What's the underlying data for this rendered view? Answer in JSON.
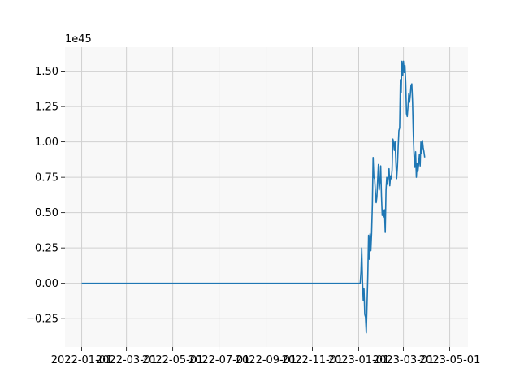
{
  "chart_data": {
    "type": "line",
    "title": "",
    "xlabel": "",
    "ylabel": "",
    "y_offset_label": "1e45",
    "x_tick_labels": [
      "2022-01-01",
      "2022-03-01",
      "2022-05-01",
      "2022-07-01",
      "2022-09-01",
      "2022-11-01",
      "2023-01-01",
      "2023-03-01",
      "2023-05-01"
    ],
    "x_tick_dates": [
      "2022-01-01",
      "2022-03-01",
      "2022-05-01",
      "2022-07-01",
      "2022-09-01",
      "2022-11-01",
      "2023-01-01",
      "2023-03-01",
      "2023-05-01"
    ],
    "y_tick_labels": [
      "−0.25",
      "0.00",
      "0.25",
      "0.50",
      "0.75",
      "1.00",
      "1.25",
      "1.50"
    ],
    "y_tick_values": [
      -0.25,
      0.0,
      0.25,
      0.5,
      0.75,
      1.0,
      1.25,
      1.5
    ],
    "xlim": [
      "2021-12-10",
      "2023-05-25"
    ],
    "ylim": [
      -0.45,
      1.67
    ],
    "grid": true,
    "background_color": "#f8f8f8",
    "grid_color": "#d0d0d0",
    "series": [
      {
        "color": "#1f77b4",
        "points": [
          [
            "2022-01-01",
            0.0
          ],
          [
            "2022-07-01",
            0.0
          ],
          [
            "2022-12-31",
            0.0
          ],
          [
            "2023-01-03",
            0.0
          ],
          [
            "2023-01-04",
            0.08
          ],
          [
            "2023-01-05",
            0.25
          ],
          [
            "2023-01-06",
            0.02
          ],
          [
            "2023-01-07",
            -0.12
          ],
          [
            "2023-01-08",
            -0.04
          ],
          [
            "2023-01-09",
            -0.22
          ],
          [
            "2023-01-10",
            -0.24
          ],
          [
            "2023-01-11",
            -0.35
          ],
          [
            "2023-01-12",
            -0.15
          ],
          [
            "2023-01-13",
            0.05
          ],
          [
            "2023-01-14",
            0.34
          ],
          [
            "2023-01-15",
            0.17
          ],
          [
            "2023-01-16",
            0.35
          ],
          [
            "2023-01-17",
            0.23
          ],
          [
            "2023-01-18",
            0.35
          ],
          [
            "2023-01-19",
            0.55
          ],
          [
            "2023-01-20",
            0.89
          ],
          [
            "2023-01-21",
            0.75
          ],
          [
            "2023-01-22",
            0.74
          ],
          [
            "2023-01-23",
            0.65
          ],
          [
            "2023-01-24",
            0.57
          ],
          [
            "2023-01-25",
            0.61
          ],
          [
            "2023-01-26",
            0.73
          ],
          [
            "2023-01-27",
            0.84
          ],
          [
            "2023-01-28",
            0.66
          ],
          [
            "2023-01-29",
            0.72
          ],
          [
            "2023-01-30",
            0.83
          ],
          [
            "2023-01-31",
            0.62
          ],
          [
            "2023-02-01",
            0.48
          ],
          [
            "2023-02-02",
            0.52
          ],
          [
            "2023-02-03",
            0.47
          ],
          [
            "2023-02-04",
            0.52
          ],
          [
            "2023-02-05",
            0.36
          ],
          [
            "2023-02-06",
            0.66
          ],
          [
            "2023-02-07",
            0.75
          ],
          [
            "2023-02-08",
            0.7
          ],
          [
            "2023-02-09",
            0.76
          ],
          [
            "2023-02-10",
            0.81
          ],
          [
            "2023-02-11",
            0.69
          ],
          [
            "2023-02-12",
            0.76
          ],
          [
            "2023-02-13",
            0.74
          ],
          [
            "2023-02-14",
            0.8
          ],
          [
            "2023-02-15",
            1.02
          ],
          [
            "2023-02-16",
            1.0
          ],
          [
            "2023-02-17",
            0.94
          ],
          [
            "2023-02-18",
            1.0
          ],
          [
            "2023-02-19",
            0.86
          ],
          [
            "2023-02-20",
            0.74
          ],
          [
            "2023-02-21",
            0.82
          ],
          [
            "2023-02-22",
            0.96
          ],
          [
            "2023-02-23",
            1.08
          ],
          [
            "2023-02-24",
            1.1
          ],
          [
            "2023-02-25",
            1.44
          ],
          [
            "2023-02-26",
            1.35
          ],
          [
            "2023-02-27",
            1.57
          ],
          [
            "2023-02-28",
            1.47
          ],
          [
            "2023-03-01",
            1.57
          ],
          [
            "2023-03-02",
            1.49
          ],
          [
            "2023-03-03",
            1.54
          ],
          [
            "2023-03-04",
            1.42
          ],
          [
            "2023-03-05",
            1.2
          ],
          [
            "2023-03-06",
            1.18
          ],
          [
            "2023-03-07",
            1.25
          ],
          [
            "2023-03-08",
            1.34
          ],
          [
            "2023-03-09",
            1.28
          ],
          [
            "2023-03-10",
            1.33
          ],
          [
            "2023-03-11",
            1.4
          ],
          [
            "2023-03-12",
            1.41
          ],
          [
            "2023-03-13",
            1.28
          ],
          [
            "2023-03-14",
            1.05
          ],
          [
            "2023-03-15",
            0.9
          ],
          [
            "2023-03-16",
            0.82
          ],
          [
            "2023-03-17",
            0.93
          ],
          [
            "2023-03-18",
            0.75
          ],
          [
            "2023-03-19",
            0.85
          ],
          [
            "2023-03-20",
            0.79
          ],
          [
            "2023-03-21",
            0.84
          ],
          [
            "2023-03-22",
            0.91
          ],
          [
            "2023-03-23",
            0.83
          ],
          [
            "2023-03-24",
            1.0
          ],
          [
            "2023-03-25",
            0.92
          ],
          [
            "2023-03-26",
            1.01
          ],
          [
            "2023-03-27",
            0.96
          ],
          [
            "2023-03-28",
            0.93
          ],
          [
            "2023-03-29",
            0.89
          ]
        ]
      }
    ]
  }
}
